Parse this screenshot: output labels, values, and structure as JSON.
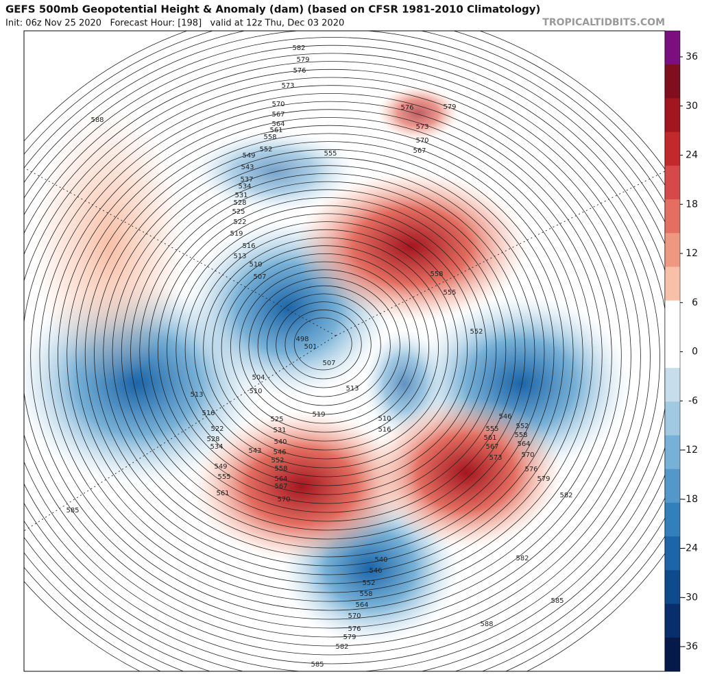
{
  "header": {
    "title": "GEFS 500mb Geopotential Height & Anomaly (dam) (based on CFSR 1981-2010 Climatology)",
    "subtitle": "Init: 06z Nov 25 2020   Forecast Hour: [198]   valid at 12z Thu, Dec 03 2020",
    "site": "TROPICALTIDBITS.COM"
  },
  "colorbar": {
    "ticks": [
      36,
      30,
      24,
      18,
      12,
      6,
      0,
      -6,
      -12,
      -18,
      -24,
      -30,
      -36
    ],
    "colors": [
      "#7b0f7e",
      "#800e1e",
      "#a3161f",
      "#c3282a",
      "#d6494a",
      "#e36e61",
      "#ee9781",
      "#f8c0a8",
      "#ffffff",
      "#ffffff",
      "#c6deec",
      "#a2c9e2",
      "#78b1d7",
      "#5398c9",
      "#3180bc",
      "#1c65a8",
      "#0f4a8c",
      "#082f6b",
      "#061a4a"
    ]
  },
  "contour_labels": [
    582,
    579,
    576,
    573,
    570,
    567,
    564,
    561,
    558,
    552,
    549,
    543,
    537,
    534,
    531,
    528,
    525,
    522,
    519,
    516,
    513,
    510,
    507,
    498,
    501,
    507,
    504,
    510,
    513,
    516,
    522,
    528,
    534,
    549,
    555,
    561,
    588,
    585,
    576,
    579,
    573,
    570,
    567,
    555,
    558,
    555,
    552,
    513,
    510,
    516,
    519,
    525,
    531,
    540,
    543,
    546,
    552,
    558,
    564,
    567,
    570,
    546,
    552,
    555,
    558,
    561,
    564,
    567,
    570,
    573,
    576,
    579,
    582,
    582,
    585,
    540,
    546,
    552,
    558,
    564,
    570,
    576,
    579,
    582,
    585,
    588
  ]
}
